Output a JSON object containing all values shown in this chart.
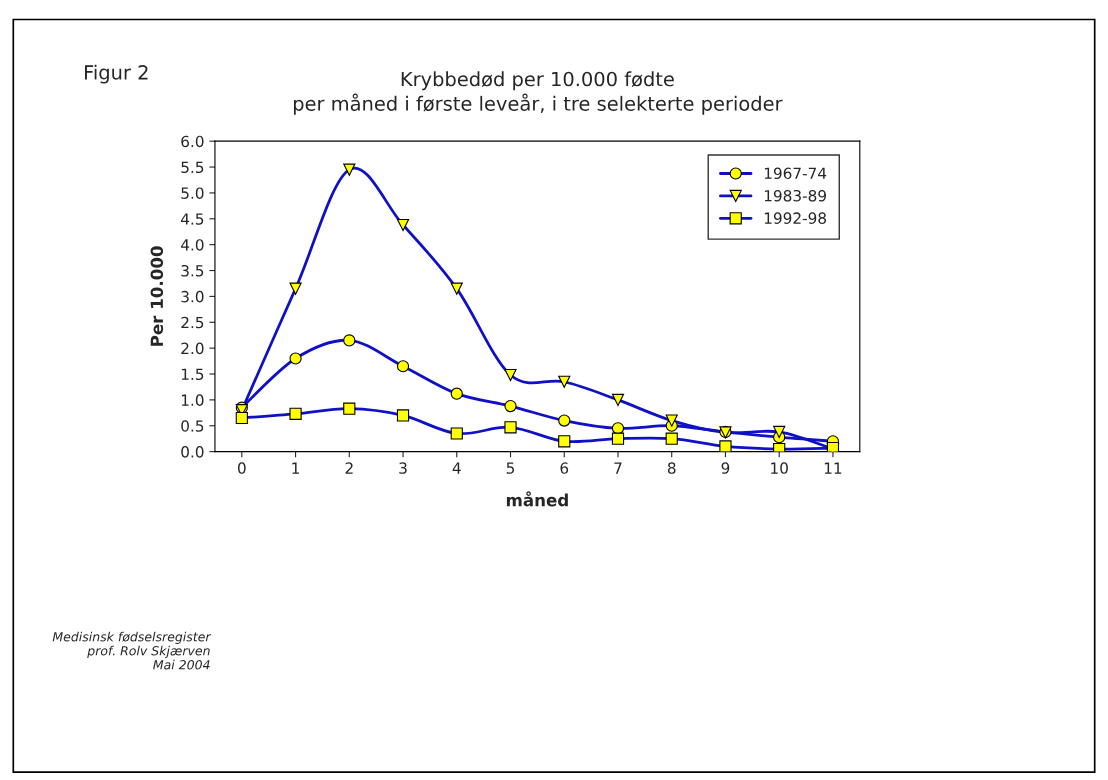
{
  "chart_data": {
    "type": "line",
    "title": "Krybbedød per 10.000 fødte\nper måned i første leveår, i tre selekterte perioder",
    "xlabel": "måned",
    "ylabel": "Per 10.000",
    "categories": [
      "0",
      "1",
      "2",
      "3",
      "4",
      "5",
      "6",
      "7",
      "8",
      "9",
      "10",
      "11"
    ],
    "series": [
      {
        "name": "1967-74",
        "color": "#1010c8",
        "marker": "circle",
        "values": [
          0.85,
          1.8,
          2.15,
          1.65,
          1.12,
          0.88,
          0.6,
          0.45,
          0.5,
          0.38,
          0.28,
          0.2
        ]
      },
      {
        "name": "1983-89",
        "color": "#1010c8",
        "marker": "triangle",
        "values": [
          0.8,
          3.15,
          5.45,
          4.38,
          3.15,
          1.48,
          1.35,
          1.0,
          0.6,
          0.37,
          0.38,
          0.05
        ]
      },
      {
        "name": "1992-98",
        "color": "#1010c8",
        "marker": "square",
        "values": [
          0.65,
          0.73,
          0.83,
          0.7,
          0.35,
          0.47,
          0.2,
          0.25,
          0.25,
          0.1,
          0.05,
          0.07
        ]
      }
    ],
    "ylim": [
      0,
      6
    ],
    "yticks": [
      {
        "value": 0,
        "label": "0.0"
      },
      {
        "value": 0.5,
        "label": "0.5"
      },
      {
        "value": 1,
        "label": "1.0"
      },
      {
        "value": 1.5,
        "label": "1.5"
      },
      {
        "value": 2,
        "label": "2.0"
      },
      {
        "value": 2.5,
        "label": "2.5"
      },
      {
        "value": 3,
        "label": "3.0"
      },
      {
        "value": 3.5,
        "label": "3.5"
      },
      {
        "value": 4,
        "label": "4.0"
      },
      {
        "value": 4.5,
        "label": "4.5"
      },
      {
        "value": 5,
        "label": "5.0"
      },
      {
        "value": 5.5,
        "label": "5.5"
      },
      {
        "value": 6,
        "label": "6.0"
      }
    ],
    "grid": false,
    "legend": "top right",
    "annotations": [
      "Figur 2",
      "Medisinsk fødselsregister\nprof. Rolv Skjærven\nMai 2004"
    ]
  }
}
